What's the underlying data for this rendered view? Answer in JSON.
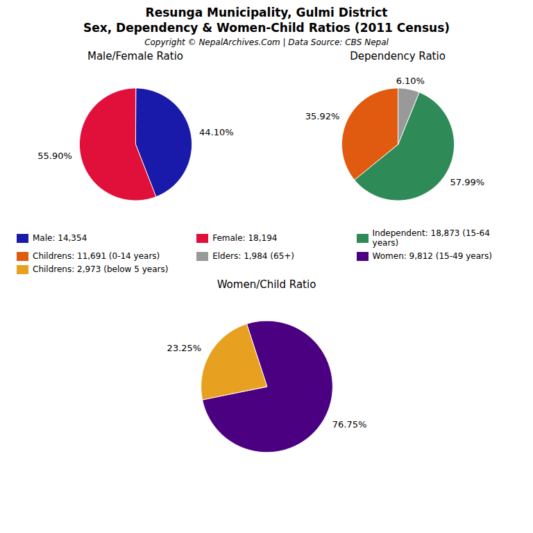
{
  "title": "Resunga Municipality, Gulmi District",
  "subtitle": "Sex, Dependency & Women-Child Ratios (2011 Census)",
  "caption": "Copyright © NepalArchives.Com | Data Source: CBS Nepal",
  "chart_data": [
    {
      "type": "pie",
      "title": "Male/Female Ratio",
      "categories": [
        "Male: 14,354",
        "Female: 18,194"
      ],
      "values": [
        44.1,
        55.9
      ],
      "value_labels": [
        "44.10%",
        "55.90%"
      ],
      "colors": [
        "#1a1aaa",
        "#e0103a"
      ],
      "data_labels": true,
      "legend": "bottom"
    },
    {
      "type": "pie",
      "title": "Dependency Ratio",
      "categories": [
        "Independent: 18,873 (15-64 years)",
        "Childrens: 11,691 (0-14 years)",
        "Elders: 1,984 (65+)"
      ],
      "values": [
        57.99,
        35.92,
        6.1
      ],
      "value_labels": [
        "57.99%",
        "35.92%",
        "6.10%"
      ],
      "colors": [
        "#2e8b57",
        "#e05a10",
        "#999999"
      ],
      "data_labels": true,
      "legend": "bottom"
    },
    {
      "type": "pie",
      "title": "Women/Child Ratio",
      "categories": [
        "Women: 9,812 (15-49 years)",
        "Childrens: 2,973 (below 5 years)"
      ],
      "values": [
        76.75,
        23.25
      ],
      "value_labels": [
        "76.75%",
        "23.25%"
      ],
      "colors": [
        "#4b0082",
        "#e8a020"
      ],
      "data_labels": true,
      "legend": "bottom"
    }
  ]
}
